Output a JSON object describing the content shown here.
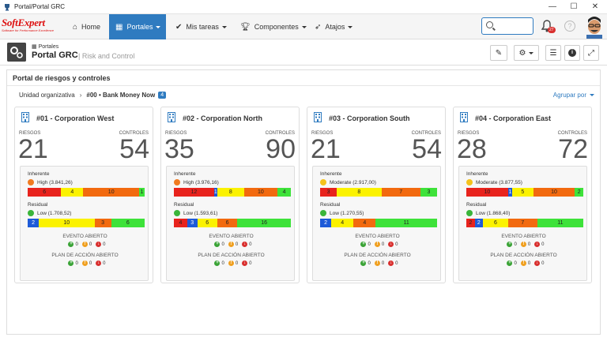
{
  "window": {
    "title": "Portal/Portal GRC",
    "minimize": "—",
    "maximize": "☐",
    "close": "✕"
  },
  "logo": {
    "word_soft": "Soft",
    "word_expert": "Expert",
    "tagline": "Software for Performance Excellence"
  },
  "nav": {
    "items": [
      {
        "label": "Home",
        "icon": "home-icon"
      },
      {
        "label": "Portales",
        "icon": "portal-icon",
        "active": true
      },
      {
        "label": "Mis tareas",
        "icon": "check-icon"
      },
      {
        "label": "Componentes",
        "icon": "trophy-icon"
      },
      {
        "label": "Atajos",
        "icon": "rocket-icon"
      }
    ],
    "notifications_count": "27",
    "help": "?"
  },
  "page": {
    "crumb": "Portales",
    "title": "Portal GRC",
    "subtitle": "Risk and Control"
  },
  "portal": {
    "title": "Portal de riesgos y controles",
    "breadcrumb_root": "Unidad organizativa",
    "breadcrumb_current": "#00 • Bank Money Now",
    "breadcrumb_count": "4",
    "group_by": "Agrupar por"
  },
  "labels": {
    "riesgos": "RIESGOS",
    "controles": "CONTROLES",
    "inherente": "Inherente",
    "residual": "Residual",
    "evento": "EVENTO ABIERTO",
    "plan": "PLAN DE ACCIÓN ABIERTO"
  },
  "colors": {
    "red": "#e8231d",
    "blue": "#1e5bd8",
    "yellow": "#fbf200",
    "orange": "#f26a0f",
    "green": "#3ee23a",
    "accent": "#2f7bc0"
  },
  "cards": [
    {
      "name": "#01 - Corporation West",
      "riesgos": "21",
      "controles": "54",
      "inherente": "High (3.841,26)",
      "inh_face": "orange",
      "inh_bar": [
        {
          "v": "6",
          "c": "red",
          "w": 6
        },
        {
          "v": "",
          "c": "blue",
          "w": 0
        },
        {
          "v": "4",
          "c": "yellow",
          "w": 4
        },
        {
          "v": "10",
          "c": "orange",
          "w": 10
        },
        {
          "v": "1",
          "c": "green",
          "w": 1
        }
      ],
      "residual": "Low (1.708,52)",
      "res_face": "green",
      "res_bar": [
        {
          "v": "2",
          "c": "blue",
          "w": 2
        },
        {
          "v": "10",
          "c": "yellow",
          "w": 10
        },
        {
          "v": "3",
          "c": "orange",
          "w": 3
        },
        {
          "v": "6",
          "c": "green",
          "w": 6
        }
      ],
      "evento": [
        "0",
        "0",
        "0"
      ],
      "plan": [
        "0",
        "0",
        "0"
      ]
    },
    {
      "name": "#02 - Corporation North",
      "riesgos": "35",
      "controles": "90",
      "inherente": "High (3.976,16)",
      "inh_face": "orange",
      "inh_bar": [
        {
          "v": "12",
          "c": "red",
          "w": 12
        },
        {
          "v": "1",
          "c": "blue",
          "w": 1
        },
        {
          "v": "8",
          "c": "yellow",
          "w": 8
        },
        {
          "v": "10",
          "c": "orange",
          "w": 10
        },
        {
          "v": "4",
          "c": "green",
          "w": 4
        }
      ],
      "residual": "Low (1.593,61)",
      "res_face": "green",
      "res_bar": [
        {
          "v": "4",
          "c": "red",
          "w": 4
        },
        {
          "v": "3",
          "c": "blue",
          "w": 3
        },
        {
          "v": "6",
          "c": "yellow",
          "w": 6
        },
        {
          "v": "6",
          "c": "orange",
          "w": 6
        },
        {
          "v": "16",
          "c": "green",
          "w": 16
        }
      ],
      "evento": [
        "0",
        "0",
        "0"
      ],
      "plan": [
        "0",
        "0",
        "0"
      ]
    },
    {
      "name": "#03 - Corporation South",
      "riesgos": "21",
      "controles": "54",
      "inherente": "Moderate (2.917,00)",
      "inh_face": "yellow",
      "inh_bar": [
        {
          "v": "3",
          "c": "red",
          "w": 3
        },
        {
          "v": "8",
          "c": "yellow",
          "w": 8
        },
        {
          "v": "7",
          "c": "orange",
          "w": 7
        },
        {
          "v": "3",
          "c": "green",
          "w": 3
        }
      ],
      "residual": "Low (1.270,55)",
      "res_face": "green",
      "res_bar": [
        {
          "v": "2",
          "c": "blue",
          "w": 2
        },
        {
          "v": "4",
          "c": "yellow",
          "w": 4
        },
        {
          "v": "4",
          "c": "orange",
          "w": 4
        },
        {
          "v": "11",
          "c": "green",
          "w": 11
        }
      ],
      "evento": [
        "0",
        "0",
        "0"
      ],
      "plan": [
        "0",
        "0",
        "0"
      ]
    },
    {
      "name": "#04 - Corporation East",
      "riesgos": "28",
      "controles": "72",
      "inherente": "Moderate (3.877,55)",
      "inh_face": "yellow",
      "inh_bar": [
        {
          "v": "10",
          "c": "red",
          "w": 10
        },
        {
          "v": "1",
          "c": "blue",
          "w": 1
        },
        {
          "v": "5",
          "c": "yellow",
          "w": 5
        },
        {
          "v": "10",
          "c": "orange",
          "w": 10
        },
        {
          "v": "2",
          "c": "green",
          "w": 2
        }
      ],
      "residual": "Low (1.868,40)",
      "res_face": "green",
      "res_bar": [
        {
          "v": "2",
          "c": "red",
          "w": 2
        },
        {
          "v": "2",
          "c": "blue",
          "w": 2
        },
        {
          "v": "6",
          "c": "yellow",
          "w": 6
        },
        {
          "v": "7",
          "c": "orange",
          "w": 7
        },
        {
          "v": "11",
          "c": "green",
          "w": 11
        }
      ],
      "evento": [
        "0",
        "0",
        "0"
      ],
      "plan": [
        "0",
        "0",
        "0"
      ]
    }
  ]
}
